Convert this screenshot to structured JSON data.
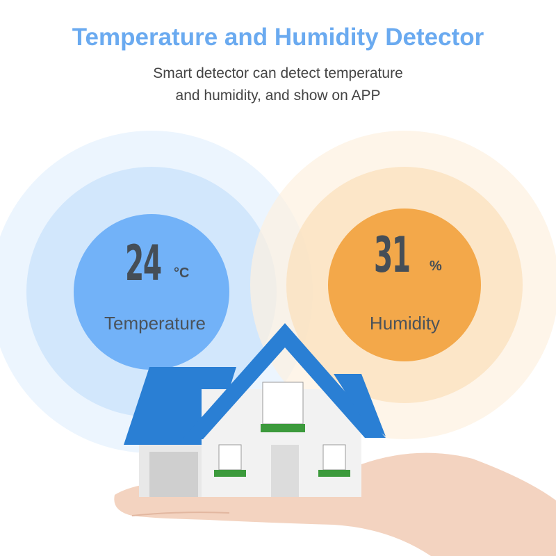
{
  "header": {
    "title": "Temperature and Humidity Detector",
    "subtitle_line1": "Smart detector can detect temperature",
    "subtitle_line2": "and humidity, and show on APP"
  },
  "temperature": {
    "value": "24",
    "unit": "°C",
    "label": "Temperature",
    "color": "#6fb1f8"
  },
  "humidity": {
    "value": "31",
    "unit": "%",
    "label": "Humidity",
    "color": "#f3a84a"
  },
  "colors": {
    "title": "#6aaaf0",
    "roof": "#2a7fd4",
    "text": "#454e57"
  }
}
